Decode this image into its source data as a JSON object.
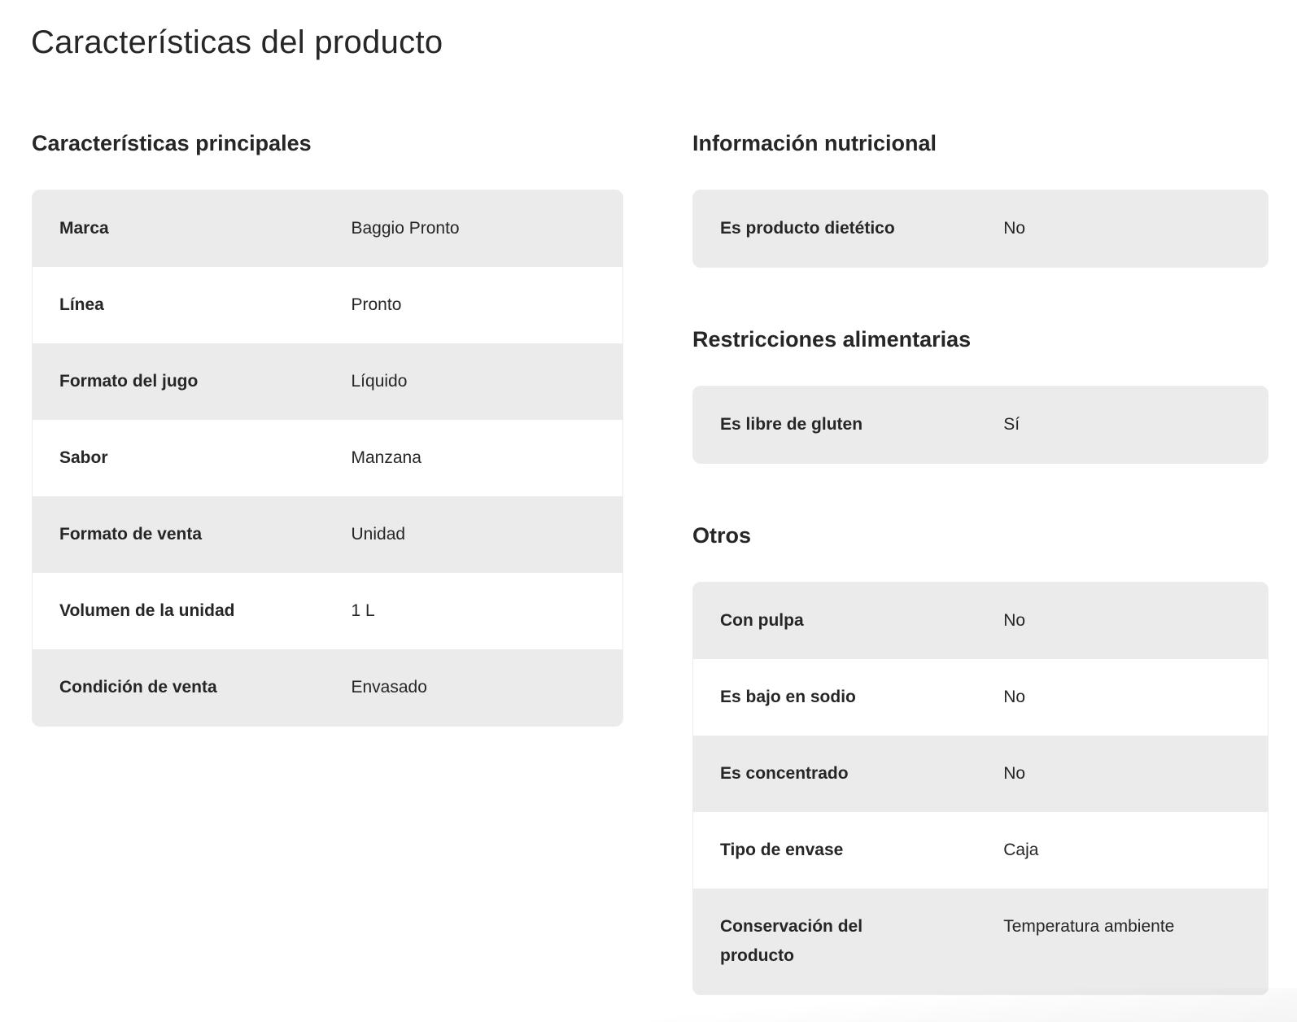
{
  "page": {
    "title": "Características del producto"
  },
  "sections": {
    "principales": {
      "title": "Características principales",
      "rows": [
        {
          "label": "Marca",
          "value": "Baggio Pronto"
        },
        {
          "label": "Línea",
          "value": "Pronto"
        },
        {
          "label": "Formato del jugo",
          "value": "Líquido"
        },
        {
          "label": "Sabor",
          "value": "Manzana"
        },
        {
          "label": "Formato de venta",
          "value": "Unidad"
        },
        {
          "label": "Volumen de la unidad",
          "value": "1 L"
        },
        {
          "label": "Condición de venta",
          "value": "Envasado"
        }
      ]
    },
    "nutricional": {
      "title": "Información nutricional",
      "rows": [
        {
          "label": "Es producto dietético",
          "value": "No"
        }
      ]
    },
    "restricciones": {
      "title": "Restricciones alimentarias",
      "rows": [
        {
          "label": "Es libre de gluten",
          "value": "Sí"
        }
      ]
    },
    "otros": {
      "title": "Otros",
      "rows": [
        {
          "label": "Con pulpa",
          "value": "No"
        },
        {
          "label": "Es bajo en sodio",
          "value": "No"
        },
        {
          "label": "Es concentrado",
          "value": "No"
        },
        {
          "label": "Tipo de envase",
          "value": "Caja"
        },
        {
          "label": "Conservación del producto",
          "value": "Temperatura ambiente"
        }
      ]
    }
  },
  "colors": {
    "background": "#ffffff",
    "stripe": "#ebebeb",
    "table_border": "#ececec",
    "text": "#262626"
  }
}
